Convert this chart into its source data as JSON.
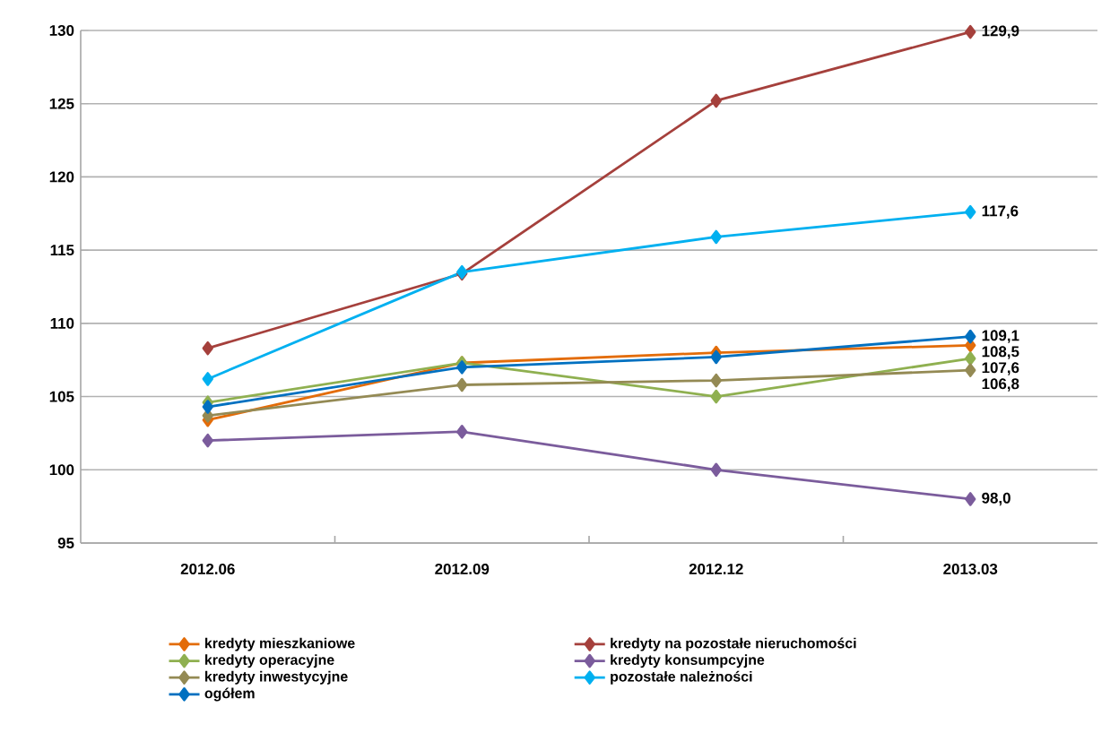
{
  "chart_data": {
    "type": "line",
    "categories": [
      "2012.06",
      "2012.09",
      "2012.12",
      "2013.03"
    ],
    "ylim": [
      95,
      130
    ],
    "yticks": [
      95,
      100,
      105,
      110,
      115,
      120,
      125,
      130
    ],
    "grid": "y",
    "legend": "bottom",
    "marker": "diamond",
    "line_style": "solid",
    "series": [
      {
        "name": "kredyty mieszkaniowe",
        "color": "#e36c09",
        "values": [
          103.4,
          107.3,
          108.0,
          108.5
        ],
        "value_labels": [
          null,
          null,
          null,
          "108,5"
        ]
      },
      {
        "name": "kredyty na pozostałe nieruchomości",
        "color": "#a5403c",
        "values": [
          108.3,
          113.4,
          125.2,
          129.9
        ],
        "value_labels": [
          null,
          null,
          null,
          "129,9"
        ]
      },
      {
        "name": "kredyty operacyjne",
        "color": "#8fb050",
        "values": [
          104.6,
          107.3,
          105.0,
          107.6
        ],
        "value_labels": [
          null,
          null,
          null,
          "107,6"
        ]
      },
      {
        "name": "kredyty konsumpcyjne",
        "color": "#7b5c9c",
        "values": [
          102.0,
          102.6,
          100.0,
          98.0
        ],
        "value_labels": [
          null,
          null,
          null,
          "98,0"
        ]
      },
      {
        "name": "kredyty inwestycyjne",
        "color": "#948a54",
        "values": [
          103.7,
          105.8,
          106.1,
          106.8
        ],
        "value_labels": [
          null,
          null,
          null,
          "106,8"
        ]
      },
      {
        "name": "pozostałe należności",
        "color": "#00b0f0",
        "values": [
          106.2,
          113.5,
          115.9,
          117.6
        ],
        "value_labels": [
          null,
          null,
          null,
          "117,6"
        ]
      },
      {
        "name": "ogółem",
        "color": "#0070c0",
        "values": [
          104.3,
          107.0,
          107.7,
          109.1
        ],
        "value_labels": [
          null,
          null,
          null,
          "109,1"
        ]
      }
    ]
  }
}
